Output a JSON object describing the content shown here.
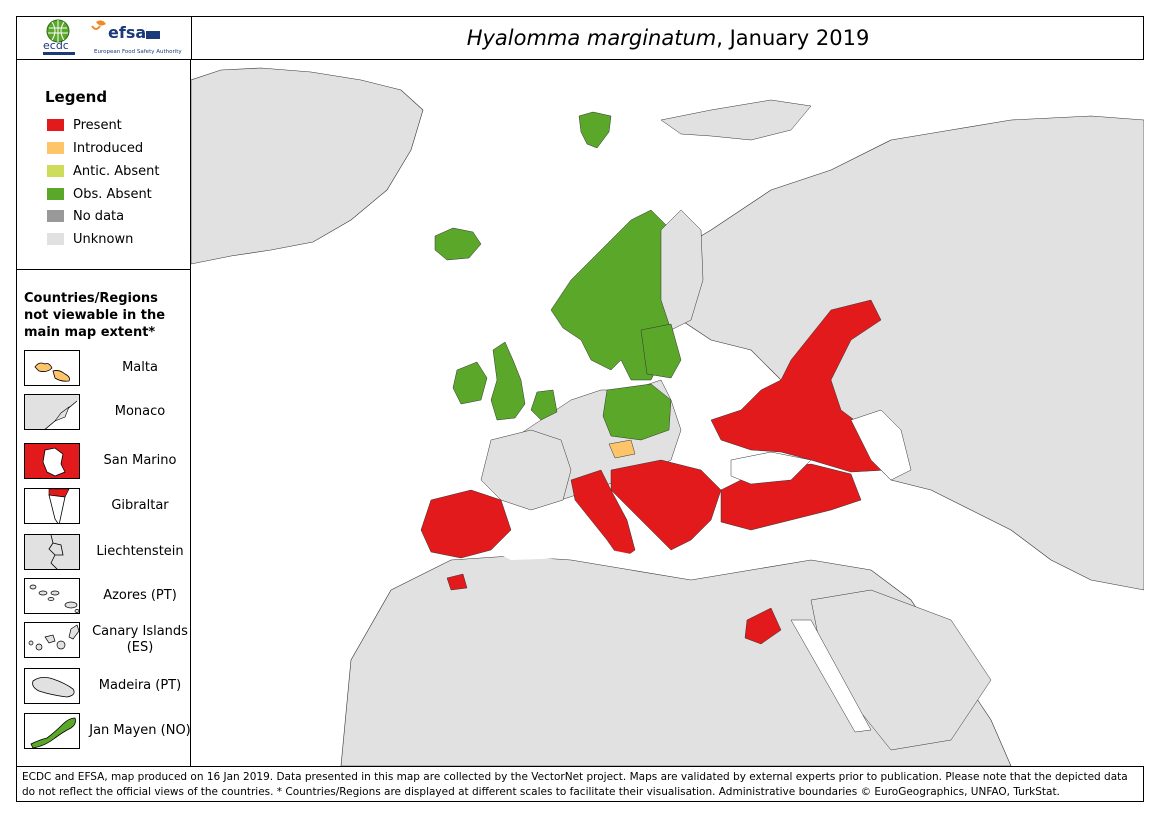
{
  "header": {
    "title_species": "Hyalomma marginatum",
    "title_date": ", January 2019",
    "logo_ecdc": "ecdc",
    "logo_efsa": "efsa",
    "logo_efsa_sub": "European Food Safety Authority"
  },
  "legend": {
    "title": "Legend",
    "items": [
      {
        "label": "Present",
        "color": "#e31a1c"
      },
      {
        "label": "Introduced",
        "color": "#fdc46a"
      },
      {
        "label": "Antic. Absent",
        "color": "#cddc5a"
      },
      {
        "label": "Obs. Absent",
        "color": "#5aa72a"
      },
      {
        "label": "No data",
        "color": "#999999"
      },
      {
        "label": "Unknown",
        "color": "#e1e1e1"
      }
    ]
  },
  "regions": {
    "title": "Countries/Regions not viewable in the main map extent*",
    "items": [
      {
        "label": "Malta",
        "color": "#fdc46a"
      },
      {
        "label": "Monaco",
        "color": "#e1e1e1"
      },
      {
        "label": "San Marino",
        "color": "#e31a1c"
      },
      {
        "label": "Gibraltar",
        "color": "#e31a1c"
      },
      {
        "label": "Liechtenstein",
        "color": "#e1e1e1"
      },
      {
        "label": "Azores (PT)",
        "color": "#e1e1e1"
      },
      {
        "label": "Canary Islands (ES)",
        "color": "#e1e1e1"
      },
      {
        "label": "Madeira (PT)",
        "color": "#e1e1e1"
      },
      {
        "label": "Jan Mayen (NO)",
        "color": "#5aa72a"
      }
    ]
  },
  "map": {
    "colors": {
      "present": "#e31a1c",
      "introduced": "#fdc46a",
      "obs_absent": "#5aa72a",
      "unknown": "#e1e1e1",
      "sea": "#ffffff",
      "border": "#333333"
    }
  },
  "footer": {
    "text": "ECDC and EFSA, map produced on 16 Jan 2019. Data presented in this map are collected by the VectorNet project. Maps are validated by external experts prior to publication. Please note that the depicted data do not reflect the official views of the countries. * Countries/Regions are displayed at different scales to facilitate their visualisation. Administrative boundaries © EuroGeographics, UNFAO, TurkStat."
  }
}
